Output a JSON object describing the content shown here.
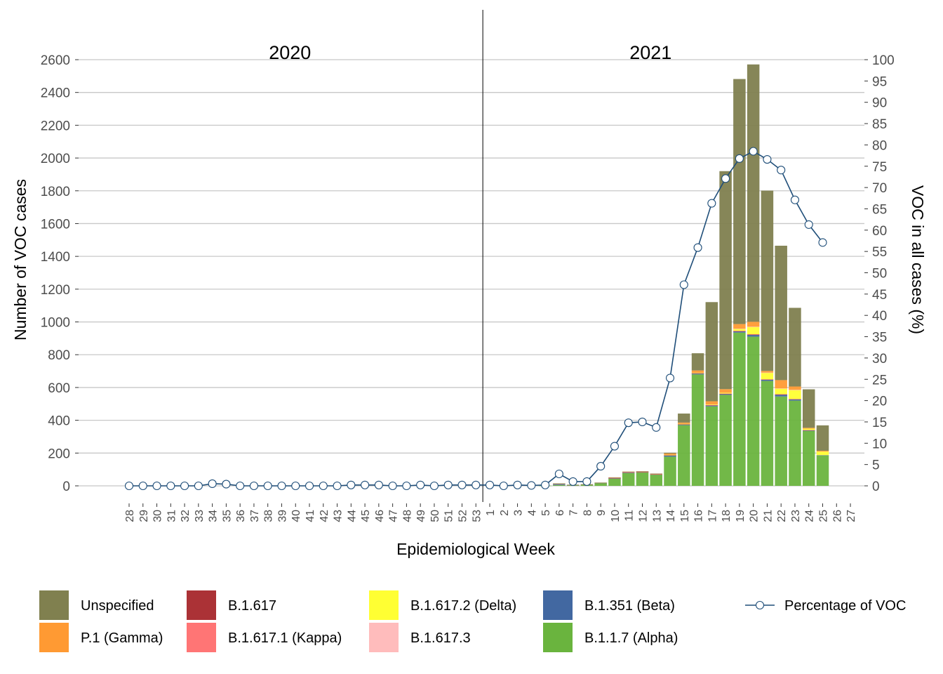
{
  "chart_data": {
    "type": "bar",
    "stacked": true,
    "xlabel": "Epidemiological Week",
    "ylabel": "Number of VOC cases",
    "y2label": "VOC in all cases (%)",
    "ylim": [
      0,
      2600
    ],
    "y2lim": [
      0,
      100
    ],
    "yticks": [
      0,
      200,
      400,
      600,
      800,
      1000,
      1200,
      1400,
      1600,
      1800,
      2000,
      2200,
      2400,
      2600
    ],
    "y2ticks": [
      0,
      5,
      10,
      15,
      20,
      25,
      30,
      35,
      40,
      45,
      50,
      55,
      60,
      65,
      70,
      75,
      80,
      85,
      90,
      95,
      100
    ],
    "grid": true,
    "legend_position": "bottom",
    "year_labels": [
      {
        "text": "2020",
        "center_week_index": 12
      },
      {
        "text": "2021",
        "center_week_index": 38
      }
    ],
    "year_divider_after_index": 25.5,
    "weeks": [
      "28",
      "29",
      "30",
      "31",
      "32",
      "33",
      "34",
      "35",
      "36",
      "37",
      "38",
      "39",
      "40",
      "41",
      "42",
      "43",
      "44",
      "45",
      "46",
      "47",
      "48",
      "49",
      "50",
      "51",
      "52",
      "53",
      "1",
      "2",
      "3",
      "4",
      "5",
      "6",
      "7",
      "8",
      "9",
      "10",
      "11",
      "12",
      "13",
      "14",
      "15",
      "16",
      "17",
      "18",
      "19",
      "20",
      "21",
      "22",
      "23",
      "24",
      "25",
      "26",
      "27"
    ],
    "series": [
      {
        "name": "B.1.1.7 (Alpha)",
        "color": "#6ab43e",
        "values": [
          0,
          0,
          0,
          0,
          0,
          0,
          0,
          0,
          0,
          0,
          0,
          0,
          0,
          0,
          0,
          0,
          0,
          0,
          0,
          0,
          0,
          0,
          0,
          0,
          0,
          0,
          0,
          0,
          0,
          0,
          1,
          5,
          4,
          7,
          17,
          44,
          78,
          82,
          68,
          178,
          370,
          680,
          485,
          555,
          935,
          910,
          640,
          545,
          520,
          335,
          185,
          0,
          0
        ]
      },
      {
        "name": "B.1.351 (Beta)",
        "color": "#4268a1",
        "values": [
          0,
          0,
          0,
          0,
          0,
          0,
          0,
          0,
          0,
          0,
          0,
          0,
          0,
          0,
          0,
          0,
          0,
          0,
          0,
          0,
          0,
          0,
          0,
          0,
          0,
          0,
          0,
          0,
          0,
          0,
          0,
          7,
          1,
          1,
          1,
          2,
          3,
          2,
          2,
          8,
          5,
          6,
          6,
          6,
          8,
          12,
          8,
          12,
          8,
          4,
          2,
          0,
          0
        ]
      },
      {
        "name": "B.1.617",
        "color": "#ab3236",
        "values": [
          0,
          0,
          0,
          0,
          0,
          0,
          0,
          0,
          0,
          0,
          0,
          0,
          0,
          0,
          0,
          0,
          0,
          0,
          0,
          0,
          0,
          0,
          0,
          0,
          0,
          0,
          0,
          0,
          0,
          0,
          0,
          0,
          0,
          0,
          0,
          2,
          2,
          1,
          1,
          1,
          1,
          1,
          1,
          1,
          1,
          1,
          1,
          1,
          1,
          1,
          0,
          0,
          0
        ]
      },
      {
        "name": "B.1.617.1 (Kappa)",
        "color": "#ff7575",
        "values": [
          0,
          0,
          0,
          0,
          0,
          0,
          0,
          0,
          0,
          0,
          0,
          0,
          0,
          0,
          0,
          0,
          0,
          0,
          0,
          0,
          0,
          0,
          0,
          0,
          0,
          0,
          0,
          0,
          0,
          0,
          0,
          0,
          0,
          0,
          0,
          1,
          1,
          1,
          1,
          1,
          1,
          1,
          1,
          1,
          2,
          2,
          1,
          1,
          1,
          1,
          0,
          0,
          0
        ]
      },
      {
        "name": "B.1.617.2 (Delta)",
        "color": "#ffff33",
        "values": [
          0,
          0,
          0,
          0,
          0,
          0,
          0,
          0,
          0,
          0,
          0,
          0,
          0,
          0,
          0,
          0,
          0,
          0,
          0,
          0,
          0,
          0,
          0,
          0,
          0,
          0,
          0,
          0,
          0,
          0,
          0,
          0,
          0,
          0,
          0,
          0,
          0,
          0,
          0,
          1,
          1,
          2,
          3,
          5,
          12,
          45,
          40,
          35,
          55,
          8,
          22,
          0,
          0
        ]
      },
      {
        "name": "B.1.617.3",
        "color": "#ffbcbc",
        "values": [
          0,
          0,
          0,
          0,
          0,
          0,
          0,
          0,
          0,
          0,
          0,
          0,
          0,
          0,
          0,
          0,
          0,
          0,
          0,
          0,
          0,
          0,
          0,
          0,
          0,
          0,
          0,
          0,
          0,
          0,
          0,
          0,
          0,
          0,
          0,
          0,
          0,
          0,
          0,
          0,
          0,
          0,
          0,
          0,
          1,
          1,
          1,
          1,
          1,
          0,
          0,
          0,
          0
        ]
      },
      {
        "name": "P.1 (Gamma)",
        "color": "#ff9a33",
        "values": [
          0,
          0,
          0,
          0,
          0,
          0,
          0,
          0,
          0,
          0,
          0,
          0,
          0,
          0,
          0,
          0,
          0,
          0,
          0,
          0,
          0,
          0,
          0,
          0,
          0,
          0,
          0,
          0,
          0,
          0,
          0,
          1,
          1,
          1,
          1,
          2,
          2,
          2,
          2,
          8,
          8,
          14,
          20,
          22,
          28,
          30,
          10,
          50,
          20,
          5,
          5,
          0,
          0
        ]
      },
      {
        "name": "Unspecified",
        "color": "#80804f",
        "values": [
          0,
          0,
          0,
          0,
          0,
          0,
          0,
          0,
          0,
          0,
          0,
          0,
          0,
          0,
          0,
          0,
          0,
          0,
          0,
          0,
          0,
          0,
          0,
          0,
          0,
          0,
          0,
          0,
          0,
          0,
          0,
          2,
          1,
          1,
          1,
          1,
          1,
          1,
          1,
          5,
          55,
          105,
          605,
          1330,
          1495,
          1570,
          1100,
          820,
          480,
          235,
          155,
          0,
          0
        ]
      }
    ],
    "line_series": {
      "name": "Percentage of VOC",
      "axis": "right",
      "color": "#1f4e79",
      "values": [
        0,
        0,
        0,
        0,
        0,
        0,
        0.5,
        0.4,
        0,
        0,
        0,
        0,
        0,
        0,
        0,
        0,
        0.2,
        0.2,
        0.2,
        0,
        0,
        0.2,
        0,
        0.2,
        0.2,
        0.2,
        0.2,
        0,
        0.2,
        0.1,
        0.2,
        2.8,
        1.0,
        1.0,
        4.6,
        9.3,
        14.8,
        15.0,
        13.7,
        25.3,
        47.2,
        55.9,
        66.3,
        72.1,
        76.8,
        78.5,
        76.6,
        74.1,
        67.1,
        61.3,
        57.1,
        null,
        null
      ]
    },
    "legend": [
      {
        "label": "Unspecified",
        "color": "#80804f",
        "kind": "box"
      },
      {
        "label": "P.1 (Gamma)",
        "color": "#ff9a33",
        "kind": "box"
      },
      {
        "label": "B.1.617",
        "color": "#ab3236",
        "kind": "box"
      },
      {
        "label": "B.1.617.1 (Kappa)",
        "color": "#ff7575",
        "kind": "box"
      },
      {
        "label": "B.1.617.2 (Delta)",
        "color": "#ffff33",
        "kind": "box"
      },
      {
        "label": "B.1.617.3",
        "color": "#ffbcbc",
        "kind": "box"
      },
      {
        "label": "B.1.351 (Beta)",
        "color": "#4268a1",
        "kind": "box"
      },
      {
        "label": "B.1.1.7 (Alpha)",
        "color": "#6ab43e",
        "kind": "box"
      },
      {
        "label": "Percentage of VOC",
        "color": "#1f4e79",
        "kind": "line"
      }
    ]
  }
}
